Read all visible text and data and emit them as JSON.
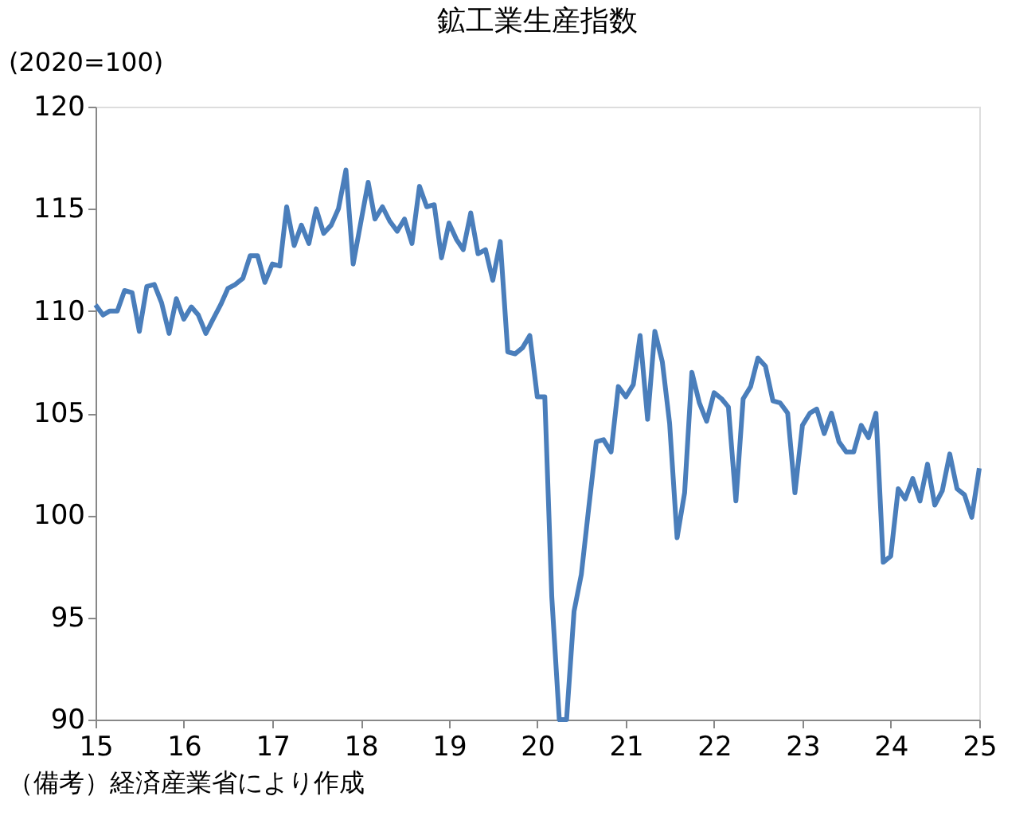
{
  "chart_data": {
    "type": "line",
    "title": "鉱工業生産指数",
    "ylabel": "(2020=100)",
    "annotations": [
      "（備考）経済産業省により作成"
    ],
    "x": [
      "2015-01",
      "2015-02",
      "2015-03",
      "2015-04",
      "2015-05",
      "2015-06",
      "2015-07",
      "2015-08",
      "2015-09",
      "2015-10",
      "2015-11",
      "2015-12",
      "2016-01",
      "2016-02",
      "2016-03",
      "2016-04",
      "2016-05",
      "2016-06",
      "2016-07",
      "2016-08",
      "2016-09",
      "2016-10",
      "2016-11",
      "2016-12",
      "2017-01",
      "2017-02",
      "2017-03",
      "2017-04",
      "2017-05",
      "2017-06",
      "2017-07",
      "2017-08",
      "2017-09",
      "2017-10",
      "2017-11",
      "2017-12",
      "2018-01",
      "2018-02",
      "2018-03",
      "2018-04",
      "2018-05",
      "2018-06",
      "2018-07",
      "2018-08",
      "2018-09",
      "2018-10",
      "2018-11",
      "2018-12",
      "2019-01",
      "2019-02",
      "2019-03",
      "2019-04",
      "2019-05",
      "2019-06",
      "2019-07",
      "2019-08",
      "2019-09",
      "2019-10",
      "2019-11",
      "2019-12",
      "2020-01",
      "2020-02",
      "2020-03",
      "2020-04",
      "2020-05",
      "2020-06",
      "2020-07",
      "2020-08",
      "2020-09",
      "2020-10",
      "2020-11",
      "2020-12",
      "2021-01",
      "2021-02",
      "2021-03",
      "2021-04",
      "2021-05",
      "2021-06",
      "2021-07",
      "2021-08",
      "2021-09",
      "2021-10",
      "2021-11",
      "2021-12",
      "2022-01",
      "2022-02",
      "2022-03",
      "2022-04",
      "2022-05",
      "2022-06",
      "2022-07",
      "2022-08",
      "2022-09",
      "2022-10",
      "2022-11",
      "2022-12",
      "2023-01",
      "2023-02",
      "2023-03",
      "2023-04",
      "2023-05",
      "2023-06",
      "2023-07",
      "2023-08",
      "2023-09",
      "2023-10",
      "2023-11",
      "2023-12",
      "2024-01",
      "2024-02",
      "2024-03",
      "2024-04",
      "2024-05",
      "2024-06",
      "2024-07",
      "2024-08",
      "2024-09",
      "2024-10",
      "2024-11",
      "2024-12",
      "2025-01"
    ],
    "series": [
      {
        "color": "#4a7ebb",
        "values": [
          110.3,
          109.8,
          110.0,
          110.0,
          111.0,
          110.9,
          109.0,
          111.2,
          111.3,
          110.4,
          108.9,
          110.6,
          109.6,
          110.2,
          109.8,
          108.9,
          109.6,
          110.3,
          111.1,
          111.3,
          111.6,
          112.7,
          112.7,
          111.4,
          112.3,
          112.2,
          115.1,
          113.2,
          114.2,
          113.3,
          115.0,
          113.8,
          114.2,
          115.0,
          116.9,
          112.3,
          114.3,
          116.3,
          114.5,
          115.1,
          114.4,
          113.9,
          114.5,
          113.3,
          116.1,
          115.1,
          115.2,
          112.6,
          114.3,
          113.5,
          113.0,
          114.8,
          112.8,
          113.0,
          111.5,
          113.4,
          108.0,
          107.9,
          108.2,
          108.8,
          105.8,
          105.8,
          96.0,
          90.0,
          90.0,
          95.3,
          97.1,
          100.4,
          103.6,
          103.7,
          103.1,
          106.3,
          105.8,
          106.4,
          108.8,
          104.7,
          109.0,
          107.5,
          104.5,
          98.9,
          101.1,
          107.0,
          105.5,
          104.6,
          106.0,
          105.7,
          105.3,
          100.7,
          105.7,
          106.3,
          107.7,
          107.3,
          105.6,
          105.5,
          105.0,
          101.1,
          104.4,
          105.0,
          105.2,
          104.0,
          105.0,
          103.6,
          103.1,
          103.1,
          104.4,
          103.8,
          105.0,
          97.7,
          98.0,
          101.3,
          100.8,
          101.8,
          100.7,
          102.5,
          100.5,
          101.2,
          103.0,
          101.3,
          101.0,
          99.9,
          102.3
        ]
      }
    ],
    "xlim": [
      "2015-01",
      "2025-01"
    ],
    "xticks": [
      {
        "value": "2015-01",
        "label": "15"
      },
      {
        "value": "2016-01",
        "label": "16"
      },
      {
        "value": "2017-01",
        "label": "17"
      },
      {
        "value": "2018-01",
        "label": "18"
      },
      {
        "value": "2019-01",
        "label": "19"
      },
      {
        "value": "2020-01",
        "label": "20"
      },
      {
        "value": "2021-01",
        "label": "21"
      },
      {
        "value": "2022-01",
        "label": "22"
      },
      {
        "value": "2023-01",
        "label": "23"
      },
      {
        "value": "2024-01",
        "label": "24"
      },
      {
        "value": "2025-01",
        "label": "25"
      }
    ],
    "ylim": [
      90,
      120
    ],
    "yticks": [
      90,
      95,
      100,
      105,
      110,
      115,
      120
    ],
    "grid": false,
    "marker": "none",
    "line_style": "solid"
  }
}
